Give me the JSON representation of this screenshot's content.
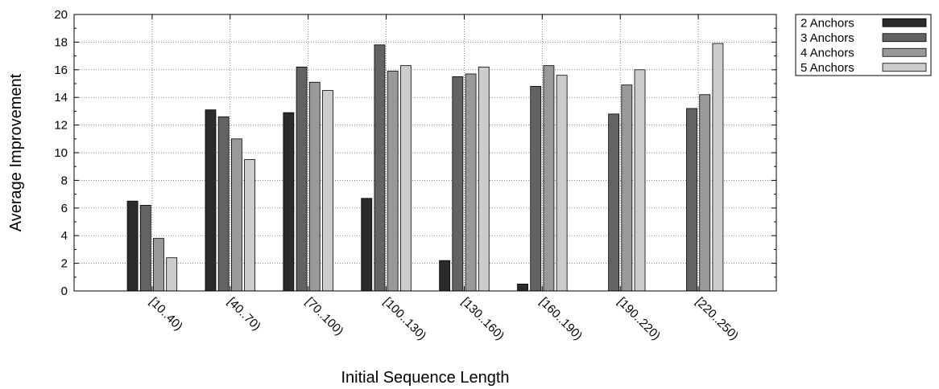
{
  "chart_data": {
    "type": "bar",
    "xlabel": "Initial Sequence Length",
    "ylabel": "Average Improvement",
    "ylim": [
      0,
      20
    ],
    "yticks": [
      0,
      2,
      4,
      6,
      8,
      10,
      12,
      14,
      16,
      18,
      20
    ],
    "grid": true,
    "legend_position": "outside-top-right",
    "categories": [
      "[10..40)",
      "[40..70)",
      "[70..100)",
      "[100..130)",
      "[130..160)",
      "[160..190)",
      "[190..220)",
      "[220..250)"
    ],
    "series": [
      {
        "name": "2 Anchors",
        "color": "#2b2b2b",
        "values": [
          6.5,
          13.1,
          12.9,
          6.7,
          2.2,
          0.5,
          null,
          null
        ]
      },
      {
        "name": "3 Anchors",
        "color": "#636363",
        "values": [
          6.2,
          12.6,
          16.2,
          17.8,
          15.5,
          14.8,
          12.8,
          13.2
        ]
      },
      {
        "name": "4 Anchors",
        "color": "#999999",
        "values": [
          3.8,
          11.0,
          15.1,
          15.9,
          15.7,
          16.3,
          14.9,
          14.2
        ]
      },
      {
        "name": "5 Anchors",
        "color": "#cccccc",
        "values": [
          2.4,
          9.5,
          14.5,
          16.3,
          16.2,
          15.6,
          16.0,
          17.9
        ]
      }
    ]
  }
}
